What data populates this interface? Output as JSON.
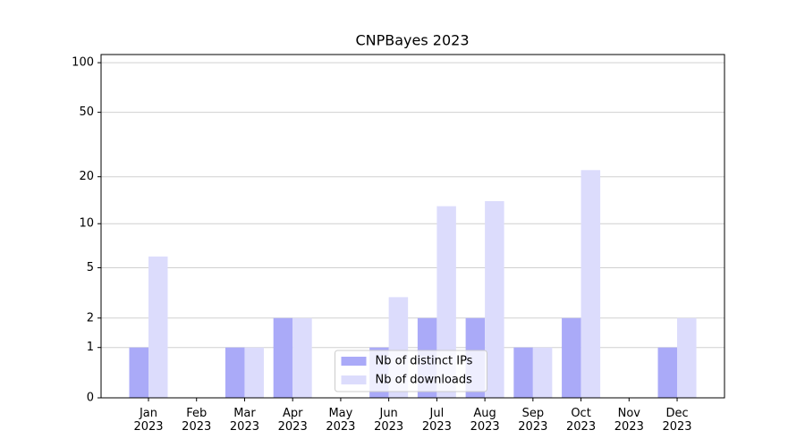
{
  "chart_data": {
    "type": "bar",
    "title": "CNPBayes 2023",
    "categories": [
      "Jan\n2023",
      "Feb\n2023",
      "Mar\n2023",
      "Apr\n2023",
      "May\n2023",
      "Jun\n2023",
      "Jul\n2023",
      "Aug\n2023",
      "Sep\n2023",
      "Oct\n2023",
      "Nov\n2023",
      "Dec\n2023"
    ],
    "series": [
      {
        "name": "Nb of distinct IPs",
        "color": "#aaaaf8",
        "values": [
          1,
          0,
          1,
          2,
          0,
          1,
          2,
          2,
          1,
          2,
          0,
          1
        ]
      },
      {
        "name": "Nb of downloads",
        "color": "#dcdcfc",
        "values": [
          6,
          0,
          1,
          2,
          0,
          3,
          13,
          14,
          1,
          22,
          0,
          2
        ]
      }
    ],
    "yscale": "log1p",
    "ylim": [
      0,
      112
    ],
    "yticks": [
      0,
      1,
      2,
      5,
      10,
      20,
      50,
      100
    ],
    "grid": true,
    "legend": "lower center"
  }
}
